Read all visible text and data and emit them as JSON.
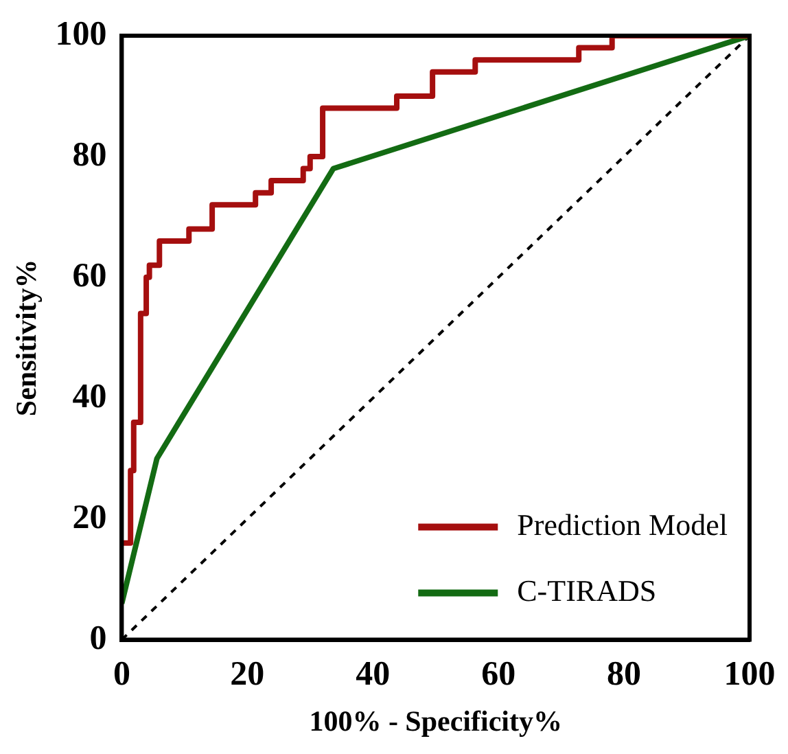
{
  "chart_data": {
    "type": "line",
    "xlabel": "100% - Specificity%",
    "ylabel": "Sensitivity%",
    "xlim": [
      0,
      100
    ],
    "ylim": [
      0,
      100
    ],
    "xticks": [
      0,
      20,
      40,
      60,
      80,
      100
    ],
    "yticks": [
      0,
      20,
      40,
      60,
      80,
      100
    ],
    "grid": false,
    "legend": "bottom right",
    "marker": "none",
    "series": [
      {
        "name": "Prediction Model",
        "color": "#a50f0f",
        "x": [
          0,
          1.4,
          1.4,
          1.9,
          1.9,
          3,
          3,
          3.9,
          3.9,
          4.4,
          4.4,
          6,
          6,
          10.7,
          10.7,
          14.4,
          14.4,
          21.3,
          21.3,
          23.8,
          23.8,
          28.9,
          28.9,
          30,
          30,
          32,
          32,
          43.8,
          43.8,
          49.5,
          49.5,
          56.3,
          56.3,
          72.8,
          72.8,
          78.1,
          78.1,
          100
        ],
        "values": [
          16,
          16,
          28,
          28,
          36,
          36,
          54,
          54,
          60,
          60,
          62,
          62,
          66,
          66,
          68,
          68,
          72,
          72,
          74,
          74,
          76,
          76,
          78,
          78,
          80,
          80,
          88,
          88,
          90,
          90,
          94,
          94,
          96,
          96,
          98,
          98,
          100,
          100
        ]
      },
      {
        "name": "C-TIRADS",
        "color": "#136b13",
        "x": [
          0,
          5.6,
          33.7,
          100
        ],
        "values": [
          6,
          30,
          78,
          100
        ]
      },
      {
        "color": "#000000",
        "line_style": "dashed",
        "x": [
          0,
          100
        ],
        "values": [
          0,
          100
        ]
      }
    ]
  }
}
